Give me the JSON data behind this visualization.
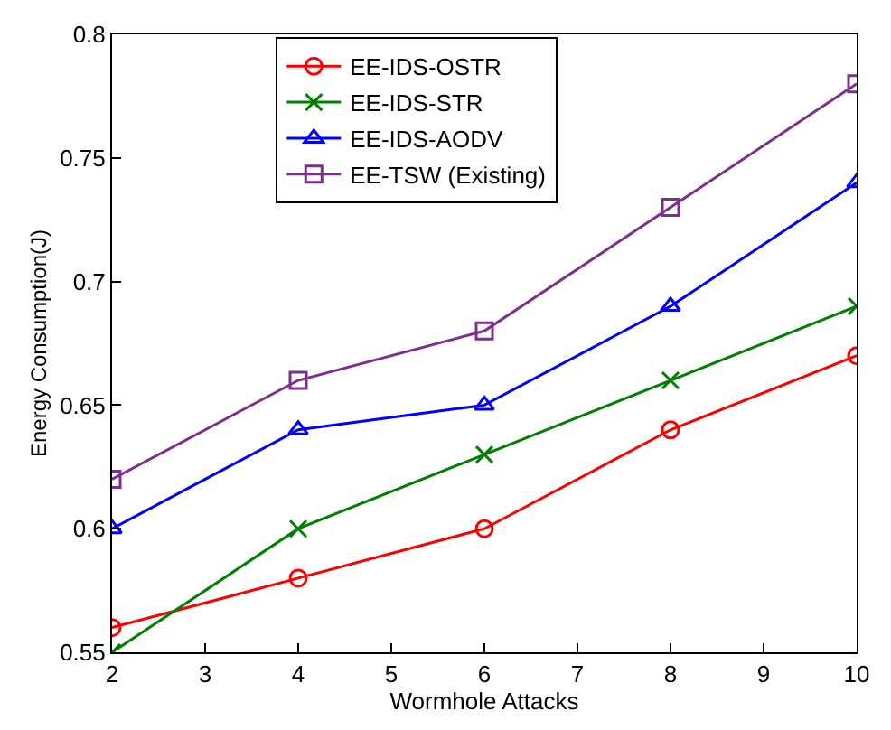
{
  "chart_data": {
    "type": "line",
    "xlabel": "Wormhole Attacks",
    "ylabel": "Energy Consumption(J)",
    "x": [
      2,
      4,
      6,
      8,
      10
    ],
    "series": [
      {
        "name": "EE-IDS-OSTR",
        "color": "#ff0000",
        "marker": "circle",
        "values": [
          0.56,
          0.58,
          0.6,
          0.64,
          0.67
        ]
      },
      {
        "name": "EE-IDS-STR",
        "color": "#008000",
        "marker": "cross",
        "values": [
          0.55,
          0.6,
          0.63,
          0.66,
          0.69
        ]
      },
      {
        "name": "EE-IDS-AODV",
        "color": "#0000ff",
        "marker": "triangle",
        "values": [
          0.6,
          0.64,
          0.65,
          0.69,
          0.74
        ]
      },
      {
        "name": "EE-TSW (Existing)",
        "color": "#7e2f8e",
        "marker": "square",
        "values": [
          0.62,
          0.66,
          0.68,
          0.73,
          0.78
        ]
      }
    ],
    "xlim": [
      2,
      10
    ],
    "xticks": [
      2,
      3,
      4,
      5,
      6,
      7,
      8,
      9,
      10
    ],
    "ylim": [
      0.55,
      0.8
    ],
    "yticks": [
      0.55,
      {
        "value": 0.6,
        "label": "0.6"
      },
      0.65,
      {
        "value": 0.7,
        "label": "0.7"
      },
      0.75,
      {
        "value": 0.8,
        "label": "0.8"
      }
    ],
    "legend": "top",
    "line_style": "solid"
  }
}
